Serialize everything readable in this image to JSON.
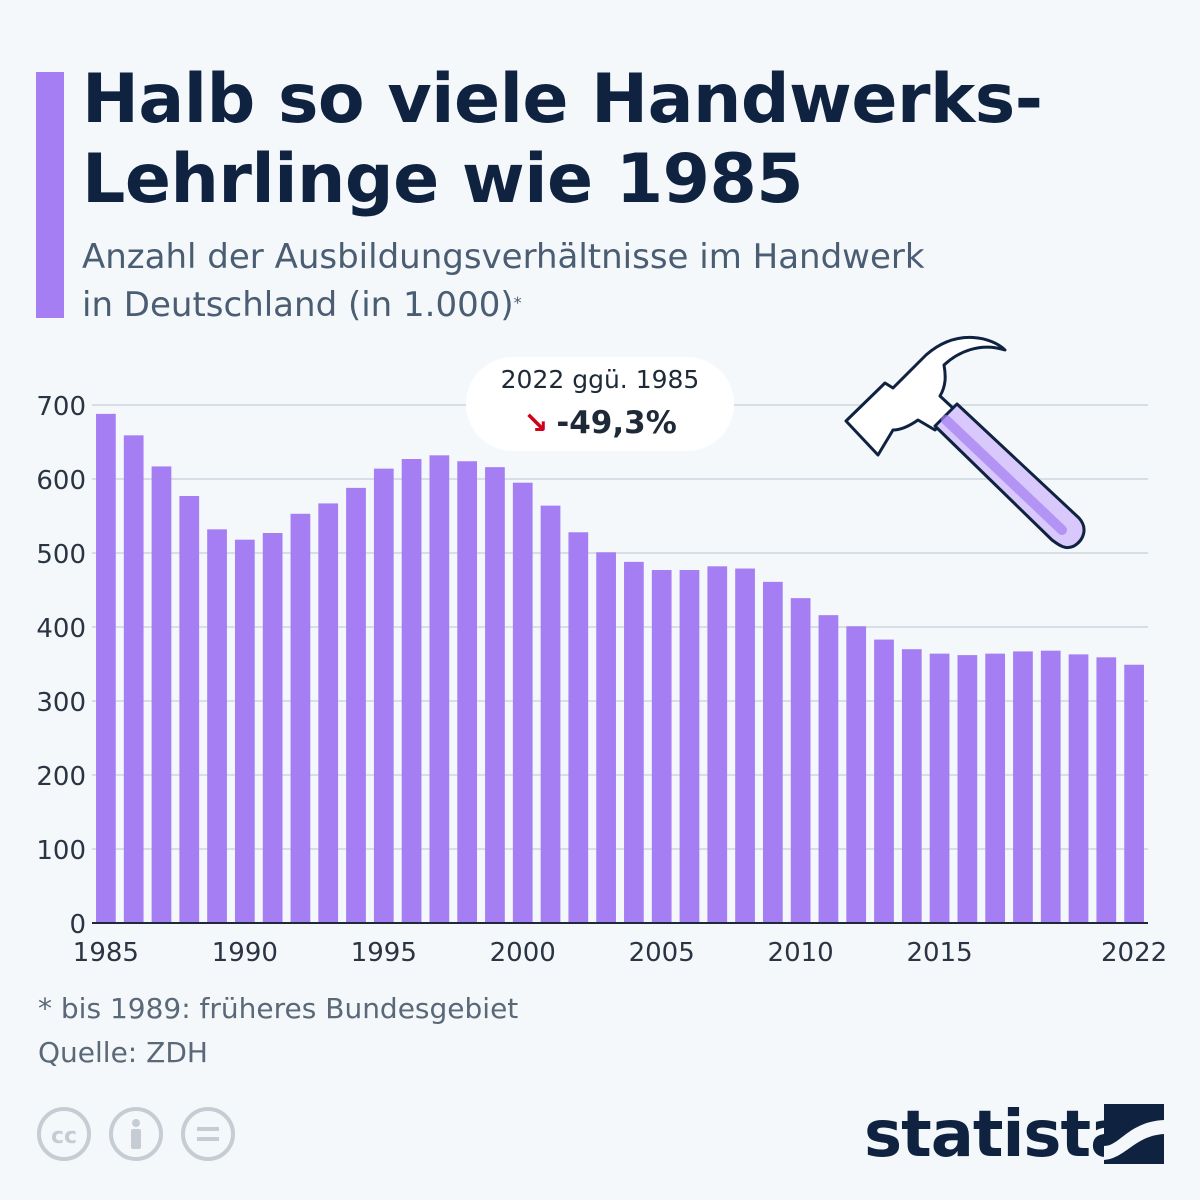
{
  "title": {
    "line1": "Halb so viele Handwerks-",
    "line2": "Lehrlinge wie 1985"
  },
  "subtitle": {
    "line1": "Anzahl der Ausbildungsverhältnisse im Handwerk",
    "line2": "in Deutschland (in 1.000)",
    "marker": "*"
  },
  "callout": {
    "label": "2022 ggü. 1985",
    "value": "-49,3%",
    "icon": "down-right-arrow-icon",
    "color": "#d0021b"
  },
  "footnote": "* bis 1989: früheres Bundesgebiet",
  "source": "Quelle: ZDH",
  "brand": {
    "name": "statista",
    "color": "#0f2240"
  },
  "license_icons": [
    "cc-icon",
    "attribution-icon",
    "no-derivatives-icon"
  ],
  "decoration": {
    "icon": "hammer-icon"
  },
  "chart_data": {
    "type": "bar",
    "x": [
      1985,
      1986,
      1987,
      1988,
      1989,
      1990,
      1991,
      1992,
      1993,
      1994,
      1995,
      1996,
      1997,
      1998,
      1999,
      2000,
      2001,
      2002,
      2003,
      2004,
      2005,
      2006,
      2007,
      2008,
      2009,
      2010,
      2011,
      2012,
      2013,
      2014,
      2015,
      2016,
      2017,
      2018,
      2019,
      2020,
      2021,
      2022
    ],
    "values": [
      688,
      659,
      617,
      577,
      532,
      518,
      527,
      553,
      567,
      588,
      614,
      627,
      632,
      624,
      616,
      595,
      564,
      528,
      501,
      488,
      477,
      477,
      482,
      479,
      461,
      439,
      416,
      401,
      383,
      370,
      364,
      362,
      364,
      367,
      368,
      363,
      359,
      349
    ],
    "xticks": [
      "1985",
      "1990",
      "1995",
      "2000",
      "2005",
      "2010",
      "2015",
      "2022"
    ],
    "yticks": [
      "0",
      "100",
      "200",
      "300",
      "400",
      "500",
      "600",
      "700"
    ],
    "ylim": [
      0,
      700
    ],
    "grid": true,
    "bar_color": "#a47ef2"
  }
}
